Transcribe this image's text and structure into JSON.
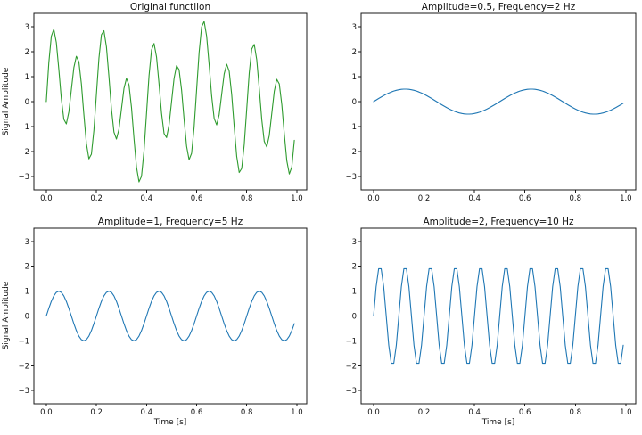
{
  "figure": {
    "background_color": "#ffffff",
    "text_color": "#111111",
    "spine_color": "#1a1a1a"
  },
  "chart_data": [
    {
      "type": "line",
      "title": "Original functiion",
      "xlabel": null,
      "ylabel": "Signal Amplitude",
      "line_color": "#2e9b2e",
      "signal_components": [
        {
          "amplitude": 0.5,
          "frequency_hz": 2
        },
        {
          "amplitude": 1,
          "frequency_hz": 5
        },
        {
          "amplitude": 2,
          "frequency_hz": 10
        }
      ],
      "sampling": {
        "t_start": 0,
        "t_step": 0.01,
        "n_points": 100
      },
      "xlim": [
        -0.0495,
        1.0395
      ],
      "ylim": [
        -3.53,
        3.53
      ],
      "xticks": {
        "values": [
          0,
          0.2,
          0.4,
          0.6,
          0.8,
          1.0
        ],
        "labels": [
          "0.0",
          "0.2",
          "0.4",
          "0.6",
          "0.8",
          "1.0"
        ]
      },
      "yticks": {
        "values": [
          -3,
          -2,
          -1,
          0,
          1,
          2,
          3
        ],
        "labels": [
          "−3",
          "−2",
          "−1",
          "0",
          "1",
          "2",
          "3"
        ]
      },
      "grid": false,
      "legend": null
    },
    {
      "type": "line",
      "title": "Amplitude=0.5, Frequency=2 Hz",
      "xlabel": null,
      "ylabel": null,
      "line_color": "#1f77b4",
      "signal_components": [
        {
          "amplitude": 0.5,
          "frequency_hz": 2
        }
      ],
      "sampling": {
        "t_start": 0,
        "t_step": 0.01,
        "n_points": 100
      },
      "xlim": [
        -0.0495,
        1.0395
      ],
      "ylim": [
        -3.53,
        3.53
      ],
      "xticks": {
        "values": [
          0,
          0.2,
          0.4,
          0.6,
          0.8,
          1.0
        ],
        "labels": [
          "0.0",
          "0.2",
          "0.4",
          "0.6",
          "0.8",
          "1.0"
        ]
      },
      "yticks": {
        "values": [
          -3,
          -2,
          -1,
          0,
          1,
          2,
          3
        ],
        "labels": [
          "−3",
          "−2",
          "−1",
          "0",
          "1",
          "2",
          "3"
        ]
      },
      "grid": false,
      "legend": null
    },
    {
      "type": "line",
      "title": "Amplitude=1, Frequency=5 Hz",
      "xlabel": "Time [s]",
      "ylabel": "Signal Amplitude",
      "line_color": "#1f77b4",
      "signal_components": [
        {
          "amplitude": 1,
          "frequency_hz": 5
        }
      ],
      "sampling": {
        "t_start": 0,
        "t_step": 0.01,
        "n_points": 100
      },
      "xlim": [
        -0.0495,
        1.0395
      ],
      "ylim": [
        -3.53,
        3.53
      ],
      "xticks": {
        "values": [
          0,
          0.2,
          0.4,
          0.6,
          0.8,
          1.0
        ],
        "labels": [
          "0.0",
          "0.2",
          "0.4",
          "0.6",
          "0.8",
          "1.0"
        ]
      },
      "yticks": {
        "values": [
          -3,
          -2,
          -1,
          0,
          1,
          2,
          3
        ],
        "labels": [
          "−3",
          "−2",
          "−1",
          "0",
          "1",
          "2",
          "3"
        ]
      },
      "grid": false,
      "legend": null
    },
    {
      "type": "line",
      "title": "Amplitude=2, Frequency=10 Hz",
      "xlabel": "Time [s]",
      "ylabel": null,
      "line_color": "#1f77b4",
      "signal_components": [
        {
          "amplitude": 2,
          "frequency_hz": 10
        }
      ],
      "sampling": {
        "t_start": 0,
        "t_step": 0.01,
        "n_points": 100
      },
      "xlim": [
        -0.0495,
        1.0395
      ],
      "ylim": [
        -3.53,
        3.53
      ],
      "xticks": {
        "values": [
          0,
          0.2,
          0.4,
          0.6,
          0.8,
          1.0
        ],
        "labels": [
          "0.0",
          "0.2",
          "0.4",
          "0.6",
          "0.8",
          "1.0"
        ]
      },
      "yticks": {
        "values": [
          -3,
          -2,
          -1,
          0,
          1,
          2,
          3
        ],
        "labels": [
          "−3",
          "−2",
          "−1",
          "0",
          "1",
          "2",
          "3"
        ]
      },
      "grid": false,
      "legend": null
    }
  ]
}
